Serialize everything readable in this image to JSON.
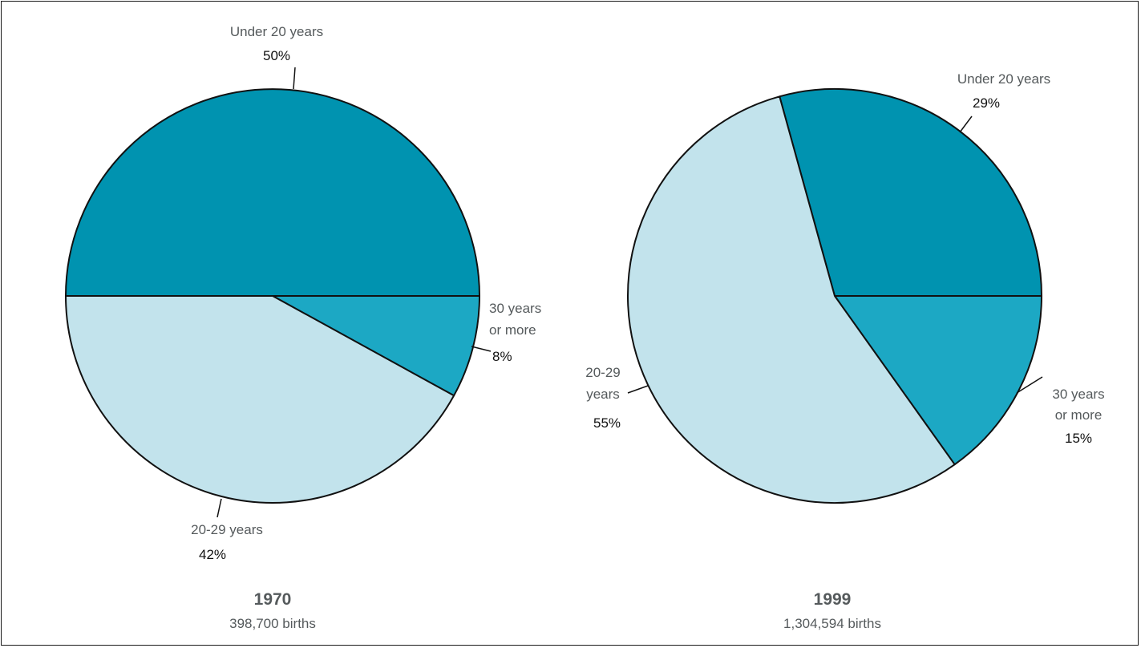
{
  "chart_data": [
    {
      "type": "pie",
      "title": "1970",
      "subtitle": "398,700 births",
      "slices": [
        {
          "label": "Under 20 years",
          "value": 50,
          "value_label": "50%",
          "color": "#0093b0"
        },
        {
          "label": "30 years or more",
          "value": 8,
          "value_label": "8%",
          "color": "#1ca8c4"
        },
        {
          "label": "20-29 years",
          "value": 42,
          "value_label": "42%",
          "color": "#c2e3ec"
        }
      ]
    },
    {
      "type": "pie",
      "title": "1999",
      "subtitle": "1,304,594 births",
      "slices": [
        {
          "label": "Under 20 years",
          "value": 29,
          "value_label": "29%",
          "color": "#0093b0"
        },
        {
          "label": "30 years or more",
          "value": 15,
          "value_label": "15%",
          "color": "#1ca8c4"
        },
        {
          "label": "20-29 years",
          "value": 55,
          "value_label": "55%",
          "color": "#c2e3ec"
        }
      ]
    }
  ]
}
